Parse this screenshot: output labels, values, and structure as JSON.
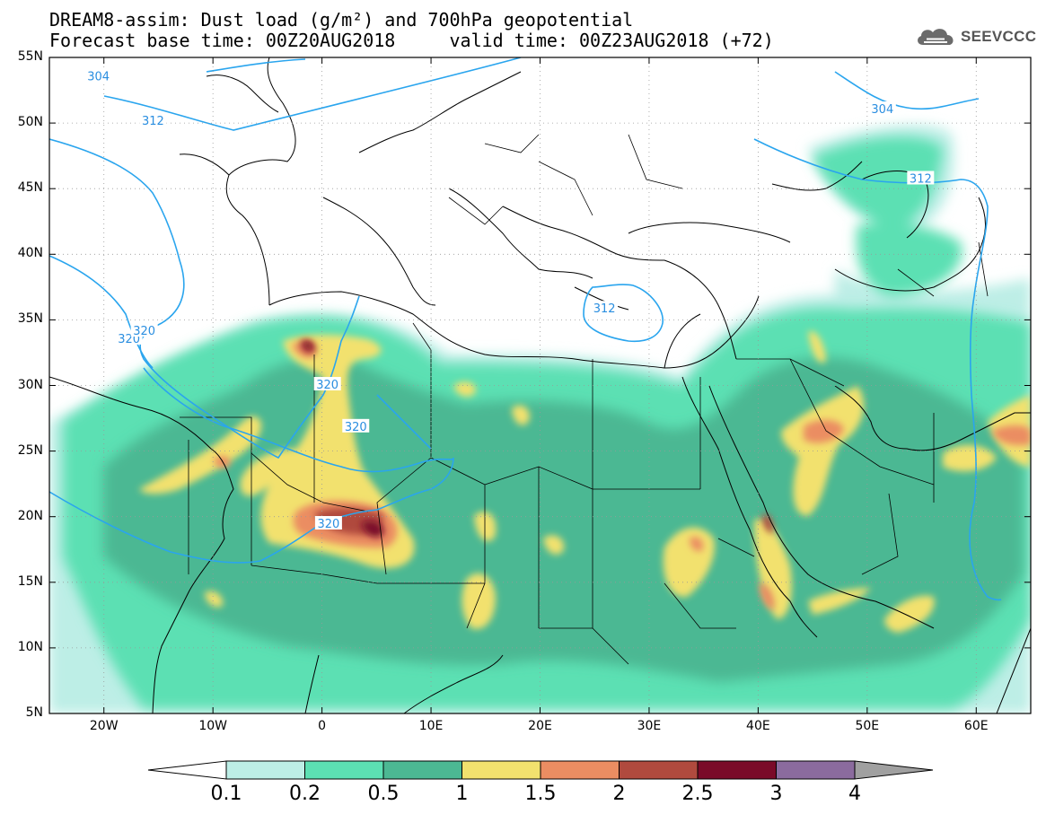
{
  "title": {
    "line1": "DREAM8-assim: Dust load (g/m²) and 700hPa geopotential",
    "line2": "Forecast base time: 00Z20AUG2018     valid time: 00Z23AUG2018 (+72)"
  },
  "logo": {
    "text": "SEEVCCC",
    "icon": "cloud-icon"
  },
  "axes": {
    "lon_range": [
      -25,
      65
    ],
    "lat_range": [
      5,
      55
    ],
    "x_ticks": [
      {
        "lon": -20,
        "label": "20W"
      },
      {
        "lon": -10,
        "label": "10W"
      },
      {
        "lon": 0,
        "label": "0"
      },
      {
        "lon": 10,
        "label": "10E"
      },
      {
        "lon": 20,
        "label": "20E"
      },
      {
        "lon": 30,
        "label": "30E"
      },
      {
        "lon": 40,
        "label": "40E"
      },
      {
        "lon": 50,
        "label": "50E"
      },
      {
        "lon": 60,
        "label": "60E"
      }
    ],
    "y_ticks": [
      {
        "lat": 55,
        "label": "55N"
      },
      {
        "lat": 50,
        "label": "50N"
      },
      {
        "lat": 45,
        "label": "45N"
      },
      {
        "lat": 40,
        "label": "40N"
      },
      {
        "lat": 35,
        "label": "35N"
      },
      {
        "lat": 30,
        "label": "30N"
      },
      {
        "lat": 25,
        "label": "25N"
      },
      {
        "lat": 20,
        "label": "20N"
      },
      {
        "lat": 15,
        "label": "15N"
      },
      {
        "lat": 10,
        "label": "10N"
      },
      {
        "lat": 5,
        "label": "5N"
      }
    ],
    "grid": "dotted"
  },
  "colorbar": {
    "labels": [
      "0.1",
      "0.2",
      "0.5",
      "1",
      "1.5",
      "2",
      "2.5",
      "3",
      "4"
    ],
    "colors": [
      "#ffffff",
      "#bdeee6",
      "#5ce0b3",
      "#4cb893",
      "#f2e16e",
      "#eb8d62",
      "#b04a3e",
      "#7a0b29",
      "#8b6b9e",
      "#a0a0a0"
    ]
  },
  "contours": [
    {
      "label": "304",
      "lon": -20.5,
      "lat": 53.6
    },
    {
      "label": "312",
      "lon": -15.5,
      "lat": 50.2
    },
    {
      "label": "320",
      "lon": -17.7,
      "lat": 33.6
    },
    {
      "label": "320",
      "lon": -16.3,
      "lat": 34.2
    },
    {
      "label": "320",
      "lon": 0.5,
      "lat": 30.1
    },
    {
      "label": "320",
      "lon": 3.1,
      "lat": 26.9
    },
    {
      "label": "320",
      "lon": 0.6,
      "lat": 19.5
    },
    {
      "label": "312",
      "lon": 25.9,
      "lat": 35.9
    },
    {
      "label": "304",
      "lon": 51.4,
      "lat": 51.1
    },
    {
      "label": "312",
      "lon": 54.9,
      "lat": 45.8
    }
  ]
}
